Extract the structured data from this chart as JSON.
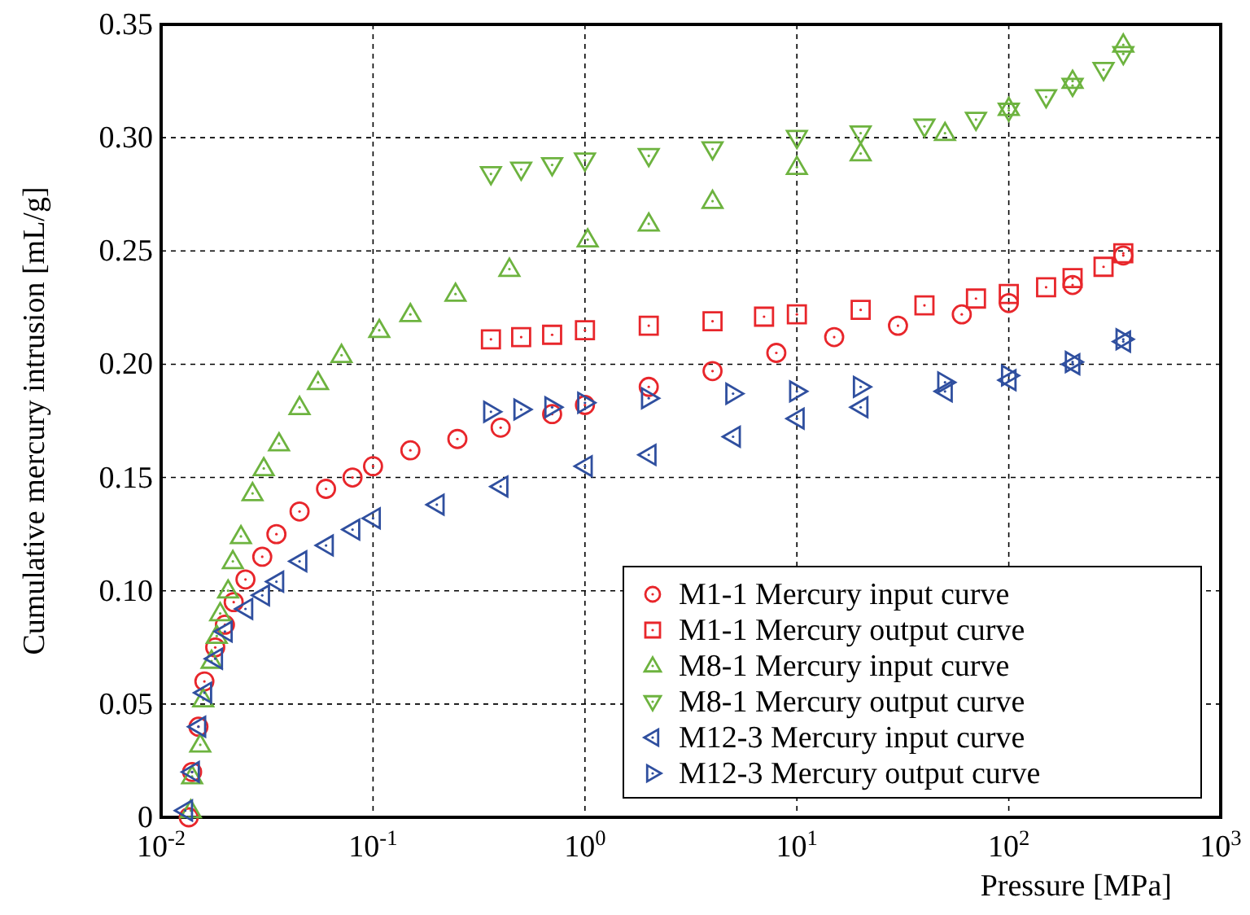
{
  "chart_data": {
    "type": "scatter",
    "xlabel": "Pressure [MPa]",
    "ylabel": "Cumulative mercury intrusion [mL/g]",
    "log": "x",
    "grid": true,
    "legend": "bottom right",
    "xlim": [
      0.01,
      1000
    ],
    "xticks": [
      {
        "value": 0.01,
        "label": "10$^{-2}$"
      },
      {
        "value": 0.1,
        "label": "10$^{-1}$"
      },
      {
        "value": 1,
        "label": "10$^{0}$"
      },
      {
        "value": 10,
        "label": "10$^{1}$"
      },
      {
        "value": 100,
        "label": "10$^{2}$"
      },
      {
        "value": 1000,
        "label": "10$^{3}$"
      }
    ],
    "ylim": [
      0,
      0.35
    ],
    "yticks": [
      0,
      {
        "value": 0.05,
        "label": "0.05"
      },
      {
        "value": 0.1,
        "label": "0.10"
      },
      {
        "value": 0.15,
        "label": "0.15"
      },
      {
        "value": 0.2,
        "label": "0.20"
      },
      {
        "value": 0.25,
        "label": "0.25"
      },
      {
        "value": 0.3,
        "label": "0.30"
      },
      {
        "value": 0.35,
        "label": "0.35"
      }
    ],
    "series": [
      {
        "name": "M1-1 Mercury input curve",
        "color": "#e8262b",
        "marker": "circle",
        "x": [
          0.0135,
          0.014,
          0.015,
          0.016,
          0.018,
          0.02,
          0.022,
          0.025,
          0.03,
          0.035,
          0.045,
          0.06,
          0.08,
          0.1,
          0.15,
          0.25,
          0.4,
          0.7,
          1,
          2,
          4,
          8,
          15,
          30,
          60,
          100,
          200,
          347
        ],
        "values": [
          0,
          0.02,
          0.04,
          0.06,
          0.075,
          0.085,
          0.095,
          0.105,
          0.115,
          0.125,
          0.135,
          0.145,
          0.15,
          0.155,
          0.162,
          0.167,
          0.172,
          0.178,
          0.182,
          0.19,
          0.197,
          0.205,
          0.212,
          0.217,
          0.222,
          0.227,
          0.235,
          0.248
        ]
      },
      {
        "name": "M1-1 Mercury output curve",
        "color": "#e8262b",
        "marker": "square",
        "x": [
          0.36,
          0.5,
          0.7,
          1,
          2,
          4,
          7,
          10,
          20,
          40,
          70,
          100,
          150,
          200,
          280,
          347
        ],
        "values": [
          0.211,
          0.212,
          0.213,
          0.215,
          0.217,
          0.219,
          0.221,
          0.222,
          0.224,
          0.226,
          0.229,
          0.231,
          0.234,
          0.238,
          0.243,
          0.249
        ]
      },
      {
        "name": "M8-1 Mercury input curve",
        "color": "#6db33f",
        "marker": "triangle",
        "x": [
          0.0138,
          0.014,
          0.0153,
          0.0158,
          0.0173,
          0.0183,
          0.019,
          0.0207,
          0.0218,
          0.0238,
          0.027,
          0.0305,
          0.036,
          0.045,
          0.055,
          0.071,
          0.107,
          0.15,
          0.245,
          0.44,
          1.03,
          2,
          4,
          10,
          20,
          50,
          100,
          200,
          347
        ],
        "values": [
          0.003,
          0.018,
          0.032,
          0.052,
          0.069,
          0.08,
          0.09,
          0.1,
          0.113,
          0.124,
          0.143,
          0.154,
          0.165,
          0.181,
          0.192,
          0.204,
          0.215,
          0.222,
          0.231,
          0.242,
          0.255,
          0.262,
          0.272,
          0.287,
          0.293,
          0.302,
          0.313,
          0.325,
          0.341
        ]
      },
      {
        "name": "M8-1 Mercury output curve",
        "color": "#6db33f",
        "marker": "triangle-down",
        "x": [
          0.36,
          0.5,
          0.7,
          1,
          2,
          4,
          10,
          20,
          40,
          70,
          100,
          150,
          200,
          280,
          347
        ],
        "values": [
          0.284,
          0.286,
          0.288,
          0.29,
          0.292,
          0.295,
          0.3,
          0.302,
          0.305,
          0.308,
          0.312,
          0.318,
          0.323,
          0.33,
          0.337
        ]
      },
      {
        "name": "M12-3 Mercury input curve",
        "color": "#2f4f9f",
        "marker": "triangle-left",
        "x": [
          0.013,
          0.014,
          0.015,
          0.016,
          0.018,
          0.02,
          0.025,
          0.03,
          0.035,
          0.045,
          0.06,
          0.08,
          0.1,
          0.2,
          0.4,
          1,
          2,
          5,
          10,
          20,
          50,
          100,
          200,
          347
        ],
        "values": [
          0.003,
          0.02,
          0.04,
          0.055,
          0.07,
          0.082,
          0.092,
          0.098,
          0.104,
          0.113,
          0.12,
          0.127,
          0.132,
          0.138,
          0.146,
          0.155,
          0.16,
          0.168,
          0.176,
          0.181,
          0.188,
          0.193,
          0.2,
          0.21
        ]
      },
      {
        "name": "M12-3 Mercury output curve",
        "color": "#2f4f9f",
        "marker": "triangle-right",
        "x": [
          0.36,
          0.5,
          0.7,
          1,
          2,
          5,
          10,
          20,
          50,
          100,
          200,
          347
        ],
        "values": [
          0.179,
          0.18,
          0.181,
          0.183,
          0.185,
          0.187,
          0.188,
          0.19,
          0.192,
          0.195,
          0.201,
          0.211
        ]
      }
    ]
  }
}
